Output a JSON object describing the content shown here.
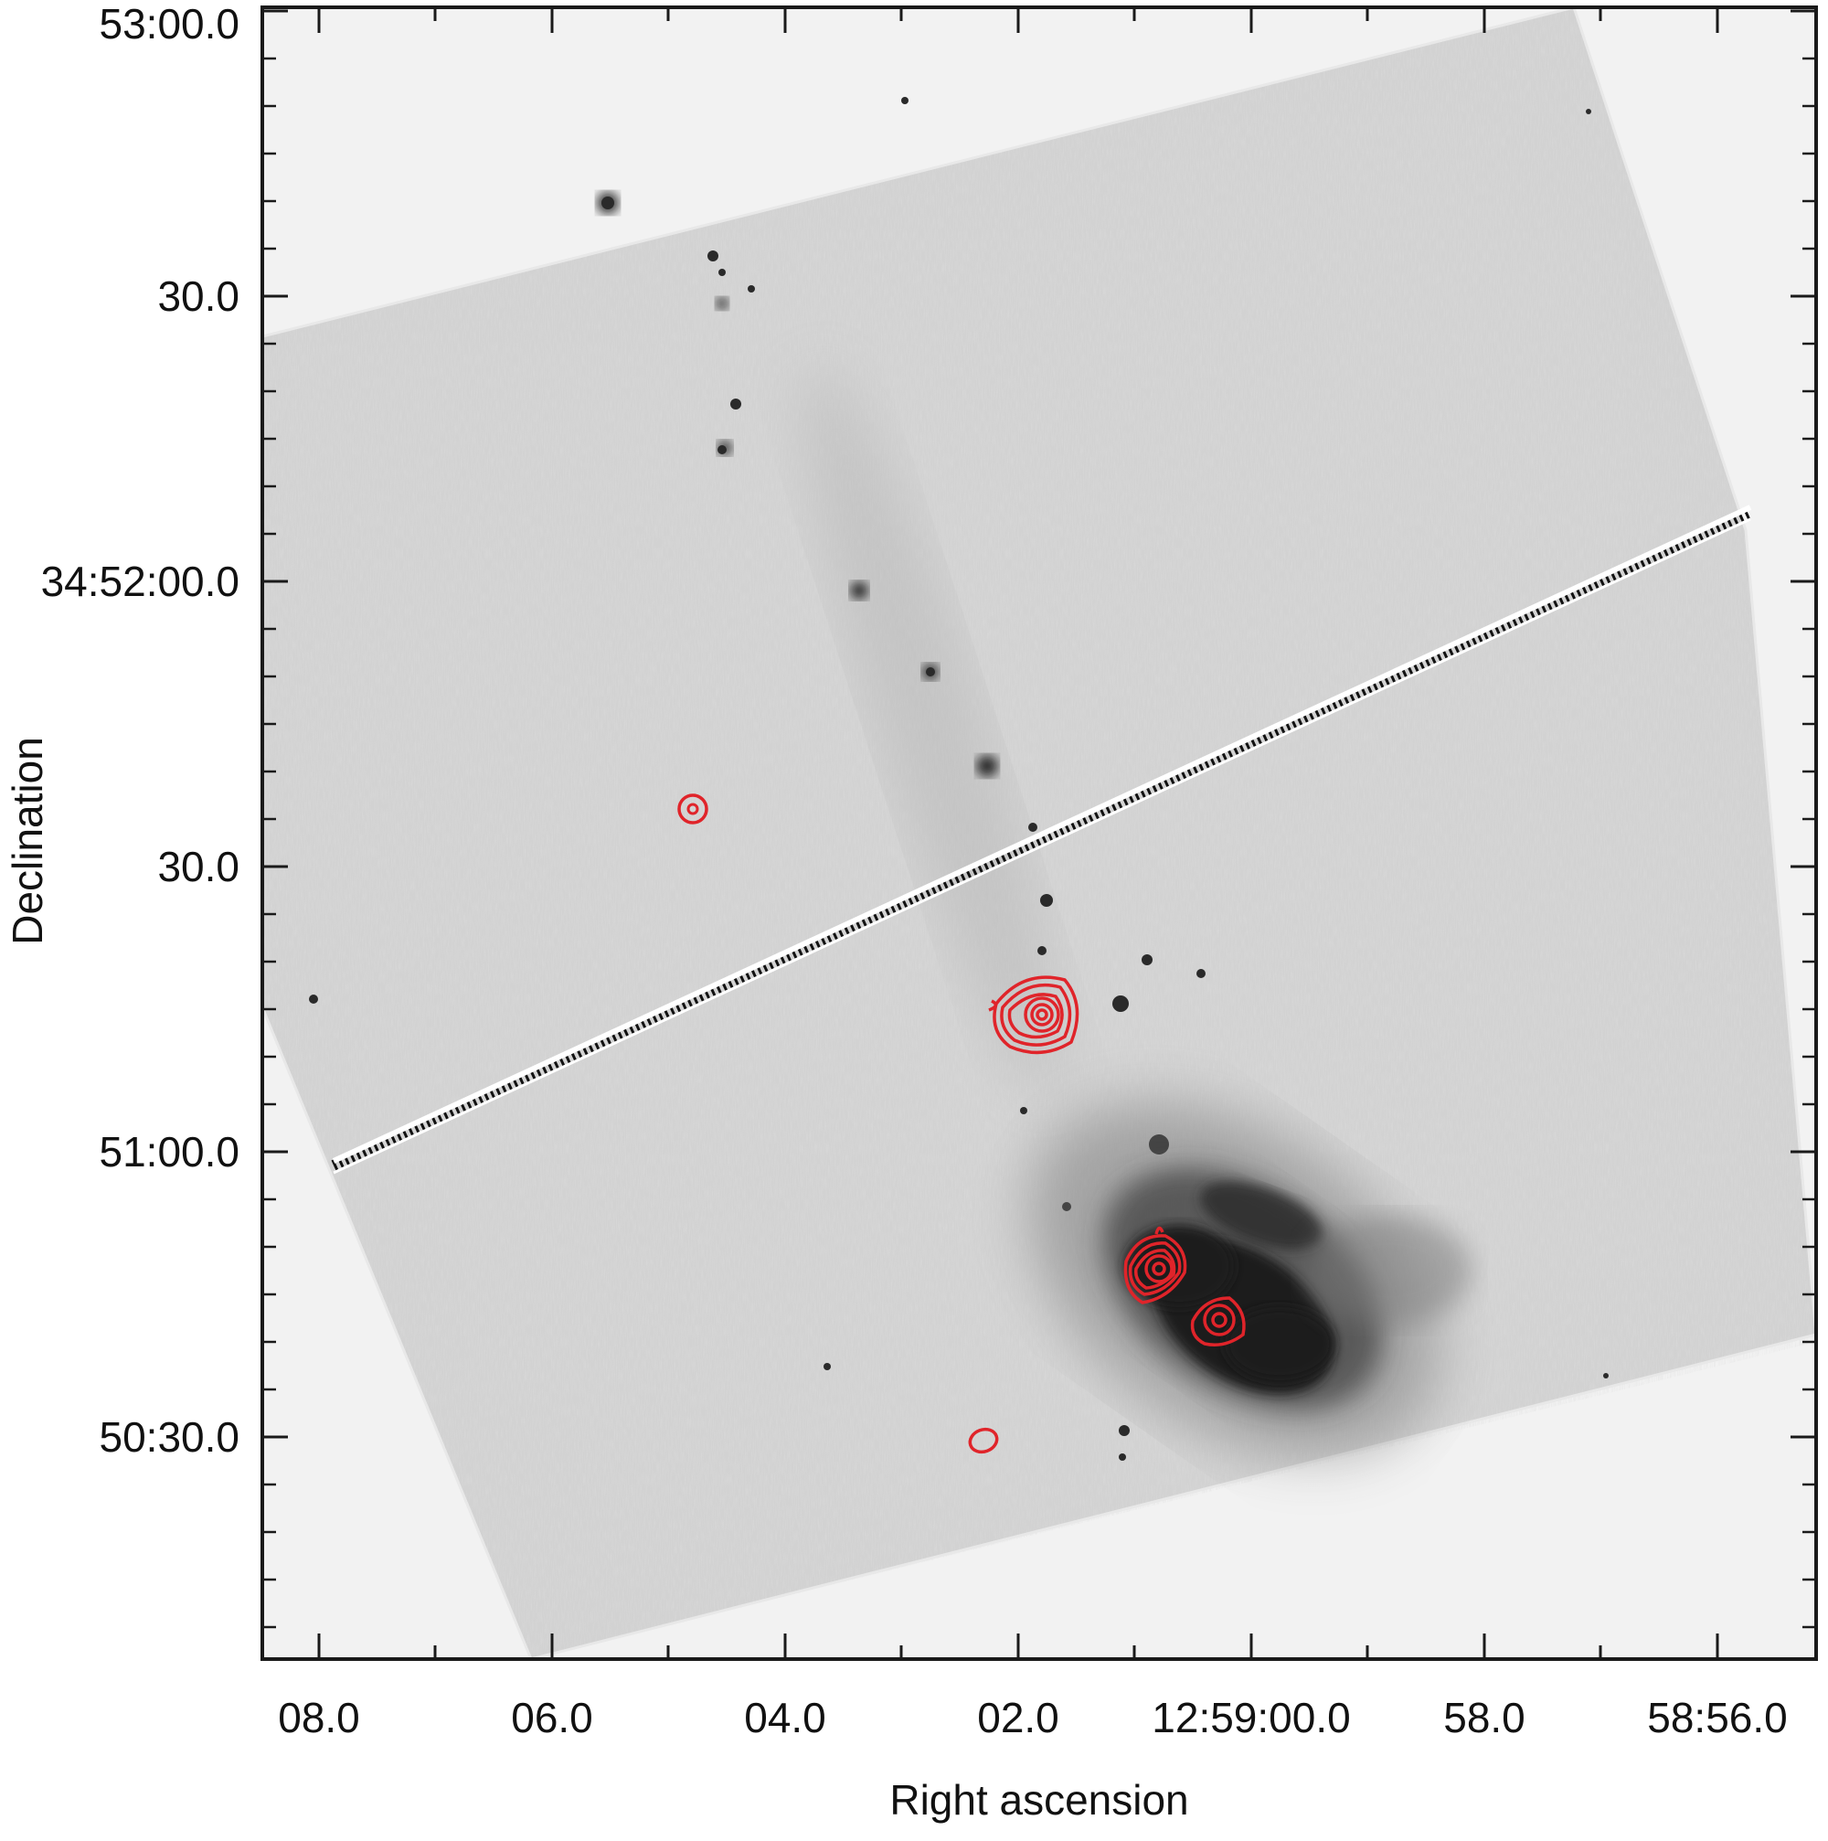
{
  "figure": {
    "xlabel": "Right ascension",
    "ylabel": "Declination",
    "x_ticks": [
      "08.0",
      "06.0",
      "04.0",
      "02.0",
      "12:59:00.0",
      "58.0",
      "58:56.0"
    ],
    "y_ticks": [
      "53:00.0",
      "30.0",
      "34:52:00.0",
      "30.0",
      "51:00.0",
      "50:30.0"
    ],
    "image_description_colors": {
      "background": "#f2f2f2",
      "field": "#cfcfcf",
      "emission": "#1b1b1b",
      "contours": "#e0242a"
    }
  }
}
